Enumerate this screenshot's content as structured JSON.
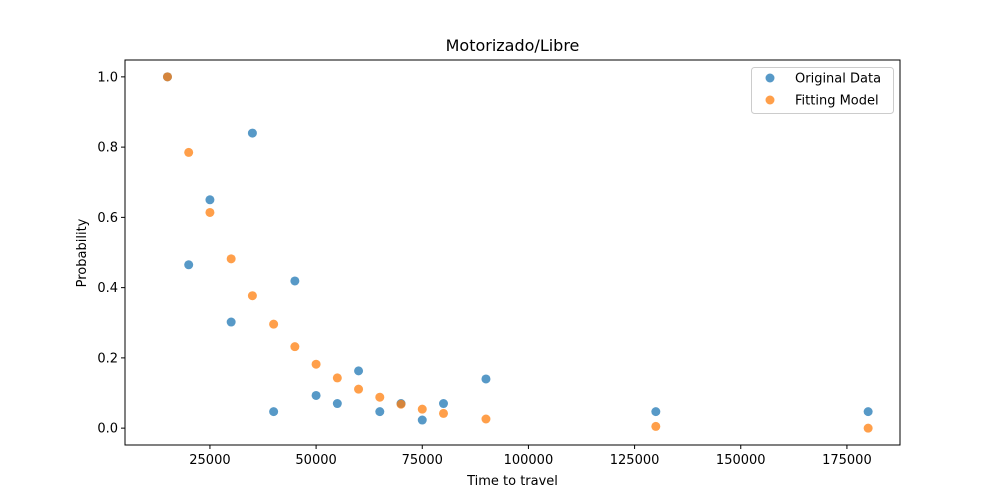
{
  "chart_data": {
    "type": "scatter",
    "title": "Motorizado/Libre",
    "xlabel": "Time to travel",
    "ylabel": "Probability",
    "xlim": [
      5000,
      187500
    ],
    "ylim": [
      -0.048,
      1.048
    ],
    "xticks": [
      25000,
      50000,
      75000,
      100000,
      125000,
      150000,
      175000
    ],
    "xtick_labels": [
      "25000",
      "50000",
      "75000",
      "100000",
      "125000",
      "150000",
      "175000"
    ],
    "yticks": [
      0.0,
      0.2,
      0.4,
      0.6,
      0.8,
      1.0
    ],
    "ytick_labels": [
      "0.0",
      "0.2",
      "0.4",
      "0.6",
      "0.8",
      "1.0"
    ],
    "grid": false,
    "legend_position": "top-right",
    "series": [
      {
        "name": "Original Data",
        "color": "#1f77b4",
        "points": [
          {
            "x": 15000,
            "y": 1.0
          },
          {
            "x": 20000,
            "y": 0.465
          },
          {
            "x": 25000,
            "y": 0.65
          },
          {
            "x": 30000,
            "y": 0.302
          },
          {
            "x": 35000,
            "y": 0.84
          },
          {
            "x": 40000,
            "y": 0.047
          },
          {
            "x": 45000,
            "y": 0.419
          },
          {
            "x": 50000,
            "y": 0.093
          },
          {
            "x": 55000,
            "y": 0.07
          },
          {
            "x": 60000,
            "y": 0.163
          },
          {
            "x": 65000,
            "y": 0.047
          },
          {
            "x": 70000,
            "y": 0.07
          },
          {
            "x": 75000,
            "y": 0.023
          },
          {
            "x": 80000,
            "y": 0.07
          },
          {
            "x": 90000,
            "y": 0.14
          },
          {
            "x": 130000,
            "y": 0.047
          },
          {
            "x": 180000,
            "y": 0.047
          }
        ]
      },
      {
        "name": "Fitting Model",
        "color": "#ff7f0e",
        "points": [
          {
            "x": 15000,
            "y": 1.0
          },
          {
            "x": 20000,
            "y": 0.785
          },
          {
            "x": 25000,
            "y": 0.614
          },
          {
            "x": 30000,
            "y": 0.482
          },
          {
            "x": 35000,
            "y": 0.377
          },
          {
            "x": 40000,
            "y": 0.296
          },
          {
            "x": 45000,
            "y": 0.232
          },
          {
            "x": 50000,
            "y": 0.182
          },
          {
            "x": 55000,
            "y": 0.143
          },
          {
            "x": 60000,
            "y": 0.111
          },
          {
            "x": 65000,
            "y": 0.088
          },
          {
            "x": 70000,
            "y": 0.068
          },
          {
            "x": 75000,
            "y": 0.054
          },
          {
            "x": 80000,
            "y": 0.042
          },
          {
            "x": 90000,
            "y": 0.026
          },
          {
            "x": 130000,
            "y": 0.005
          },
          {
            "x": 180000,
            "y": 0.0
          }
        ]
      }
    ]
  }
}
